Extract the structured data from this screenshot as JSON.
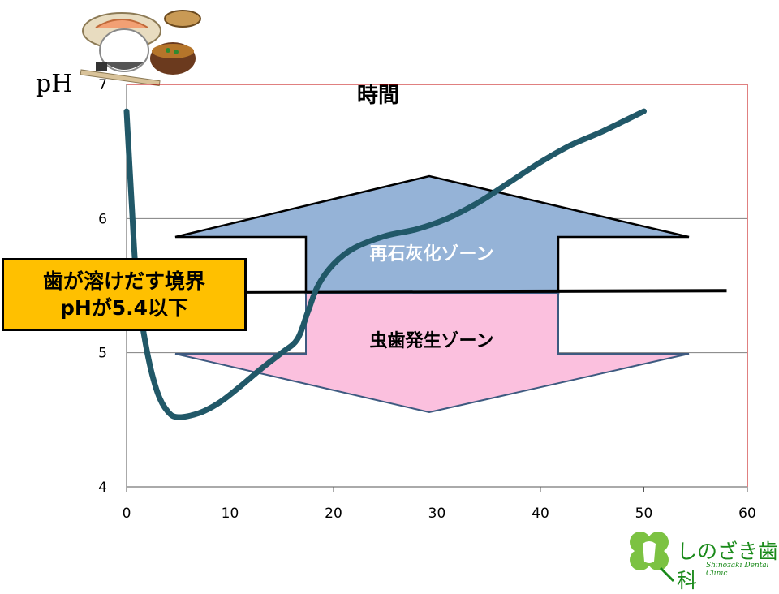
{
  "chart_data": {
    "type": "line",
    "title": "時間",
    "ylabel": "pH",
    "xlabel": "",
    "xlim": [
      0,
      60
    ],
    "ylim": [
      4,
      7
    ],
    "x_ticks": [
      0,
      10,
      20,
      30,
      40,
      50,
      60
    ],
    "y_ticks": [
      4,
      5,
      6,
      7
    ],
    "grid": "horizontal",
    "series": [
      {
        "x": [
          0,
          0.5,
          1,
          2,
          3,
          4,
          5,
          7,
          9,
          11,
          13,
          15,
          16.5,
          17.5,
          18.5,
          20,
          22,
          25,
          28,
          31,
          34,
          37,
          40,
          43,
          46,
          50
        ],
        "y": [
          6.8,
          6.1,
          5.5,
          5.0,
          4.7,
          4.56,
          4.52,
          4.55,
          4.63,
          4.75,
          4.88,
          5.0,
          5.1,
          5.3,
          5.5,
          5.66,
          5.78,
          5.87,
          5.92,
          6.0,
          6.12,
          6.27,
          6.42,
          6.55,
          6.65,
          6.8
        ]
      }
    ],
    "threshold": {
      "y": 5.45,
      "x_range": [
        0,
        58
      ]
    },
    "annotations": {
      "remineralization_zone": "再石灰化ゾーン",
      "decay_zone": "虫歯発生ゾーン",
      "callout_line1": "歯が溶けだす境界",
      "callout_line2": "pHが5.4以下"
    }
  },
  "logo": {
    "name": "しのざき歯科",
    "subtitle": "Shinozaki Dental Clinic"
  },
  "decoration": {
    "meal_icon": "japanese-meal-icon",
    "logo_icon": "clover-tooth-icon"
  },
  "colors": {
    "curve": "#215868",
    "upper_arrow": "#95b3d7",
    "lower_arrow": "#fbc0de",
    "callout": "#ffc000",
    "plot_border": "#c00000",
    "grid": "#7f7f7f"
  }
}
